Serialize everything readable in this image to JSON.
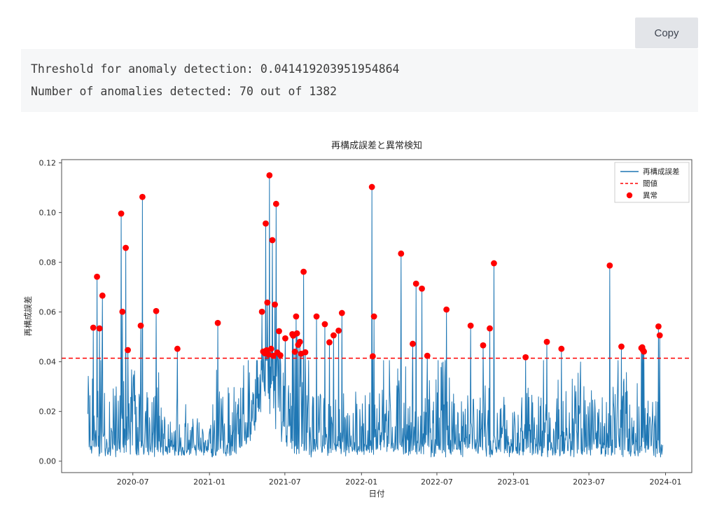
{
  "toolbar": {
    "copy_label": "Copy"
  },
  "console": {
    "lines": [
      "Threshold for anomaly detection: 0.041419203951954864",
      "Number of anomalies detected: 70 out of 1382"
    ]
  },
  "chart_data": {
    "type": "line",
    "title": "再構成誤差と異常検知",
    "xlabel": "日付",
    "ylabel": "再構成誤差",
    "legend_position": "upper right",
    "grid": false,
    "legend": [
      {
        "label": "再構成誤差",
        "style": "line",
        "color": "#1f77b4"
      },
      {
        "label": "閾値",
        "style": "dashed",
        "color": "#ff0000"
      },
      {
        "label": "異常",
        "style": "dot",
        "color": "#ff0000"
      }
    ],
    "threshold": 0.041419203951954864,
    "anomaly_count": 70,
    "n_points": 1382,
    "series_start": "2020-03-15",
    "series_end": "2023-12-26",
    "x_ticks": [
      "2020-07",
      "2021-01",
      "2021-07",
      "2022-01",
      "2022-07",
      "2023-01",
      "2023-07",
      "2024-01"
    ],
    "y_ticks": [
      0.0,
      0.02,
      0.04,
      0.06,
      0.08,
      0.1,
      0.12
    ],
    "y_tick_labels": [
      "0.00",
      "0.02",
      "0.04",
      "0.06",
      "0.08",
      "0.10",
      "0.12"
    ],
    "xlim": [
      "2020-01-12",
      "2024-03-04"
    ],
    "ylim": [
      -0.0046,
      0.1213
    ],
    "line_color": "#1f77b4",
    "threshold_color": "#ff0000",
    "anomaly_color": "#ff0000",
    "spine_color": "#4c4c4c",
    "text_color": "#2b2b2b",
    "anomalies": [
      {
        "date": "2020-03-28",
        "value": 0.0537
      },
      {
        "date": "2020-04-06",
        "value": 0.0742
      },
      {
        "date": "2020-04-12",
        "value": 0.0534
      },
      {
        "date": "2020-04-19",
        "value": 0.0666
      },
      {
        "date": "2020-06-03",
        "value": 0.0996
      },
      {
        "date": "2020-06-06",
        "value": 0.0601
      },
      {
        "date": "2020-06-14",
        "value": 0.0858
      },
      {
        "date": "2020-06-19",
        "value": 0.0447
      },
      {
        "date": "2020-07-20",
        "value": 0.0545
      },
      {
        "date": "2020-07-24",
        "value": 0.1063
      },
      {
        "date": "2020-08-26",
        "value": 0.0604
      },
      {
        "date": "2020-10-16",
        "value": 0.0452
      },
      {
        "date": "2021-01-21",
        "value": 0.0556
      },
      {
        "date": "2021-05-07",
        "value": 0.0601
      },
      {
        "date": "2021-05-10",
        "value": 0.0441
      },
      {
        "date": "2021-05-14",
        "value": 0.0434
      },
      {
        "date": "2021-05-16",
        "value": 0.0956
      },
      {
        "date": "2021-05-18",
        "value": 0.0446
      },
      {
        "date": "2021-05-20",
        "value": 0.0638
      },
      {
        "date": "2021-05-23",
        "value": 0.0429
      },
      {
        "date": "2021-05-25",
        "value": 0.115
      },
      {
        "date": "2021-05-29",
        "value": 0.0452
      },
      {
        "date": "2021-06-01",
        "value": 0.0889
      },
      {
        "date": "2021-06-03",
        "value": 0.0424
      },
      {
        "date": "2021-06-07",
        "value": 0.063
      },
      {
        "date": "2021-06-10",
        "value": 0.1035
      },
      {
        "date": "2021-06-13",
        "value": 0.0437
      },
      {
        "date": "2021-06-17",
        "value": 0.0523
      },
      {
        "date": "2021-06-20",
        "value": 0.0426
      },
      {
        "date": "2021-07-02",
        "value": 0.0494
      },
      {
        "date": "2021-07-19",
        "value": 0.0511
      },
      {
        "date": "2021-07-21",
        "value": 0.0505
      },
      {
        "date": "2021-07-25",
        "value": 0.044
      },
      {
        "date": "2021-07-28",
        "value": 0.0582
      },
      {
        "date": "2021-07-30",
        "value": 0.0514
      },
      {
        "date": "2021-08-02",
        "value": 0.0468
      },
      {
        "date": "2021-08-06",
        "value": 0.048
      },
      {
        "date": "2021-08-09",
        "value": 0.0432
      },
      {
        "date": "2021-08-15",
        "value": 0.0762
      },
      {
        "date": "2021-08-19",
        "value": 0.0438
      },
      {
        "date": "2021-09-15",
        "value": 0.0582
      },
      {
        "date": "2021-10-05",
        "value": 0.0551
      },
      {
        "date": "2021-10-16",
        "value": 0.0478
      },
      {
        "date": "2021-10-26",
        "value": 0.0506
      },
      {
        "date": "2021-11-07",
        "value": 0.0525
      },
      {
        "date": "2021-11-15",
        "value": 0.0596
      },
      {
        "date": "2022-01-26",
        "value": 0.1103
      },
      {
        "date": "2022-01-28",
        "value": 0.0422
      },
      {
        "date": "2022-01-31",
        "value": 0.0582
      },
      {
        "date": "2022-04-06",
        "value": 0.0835
      },
      {
        "date": "2022-05-04",
        "value": 0.0472
      },
      {
        "date": "2022-05-12",
        "value": 0.0714
      },
      {
        "date": "2022-05-26",
        "value": 0.0694
      },
      {
        "date": "2022-06-08",
        "value": 0.0424
      },
      {
        "date": "2022-07-24",
        "value": 0.061
      },
      {
        "date": "2022-09-20",
        "value": 0.0545
      },
      {
        "date": "2022-10-20",
        "value": 0.0466
      },
      {
        "date": "2022-11-05",
        "value": 0.0534
      },
      {
        "date": "2022-11-15",
        "value": 0.0796
      },
      {
        "date": "2023-01-30",
        "value": 0.0418
      },
      {
        "date": "2023-03-22",
        "value": 0.048
      },
      {
        "date": "2023-04-26",
        "value": 0.0452
      },
      {
        "date": "2023-08-20",
        "value": 0.0787
      },
      {
        "date": "2023-09-17",
        "value": 0.0461
      },
      {
        "date": "2023-11-04",
        "value": 0.0455
      },
      {
        "date": "2023-11-06",
        "value": 0.0458
      },
      {
        "date": "2023-11-08",
        "value": 0.0446
      },
      {
        "date": "2023-11-10",
        "value": 0.0441
      },
      {
        "date": "2023-12-15",
        "value": 0.0542
      },
      {
        "date": "2023-12-18",
        "value": 0.0506
      }
    ],
    "baseline_synthesis": {
      "seed": 20240115,
      "floor": 0.0016,
      "cap": 0.0405,
      "spike_prob": 0.1,
      "humps": [
        {
          "center": 431,
          "width": 26,
          "amp": 0.021
        }
      ],
      "calm": [
        {
          "center": 275,
          "width": 28,
          "depth": 0.45
        }
      ]
    }
  }
}
